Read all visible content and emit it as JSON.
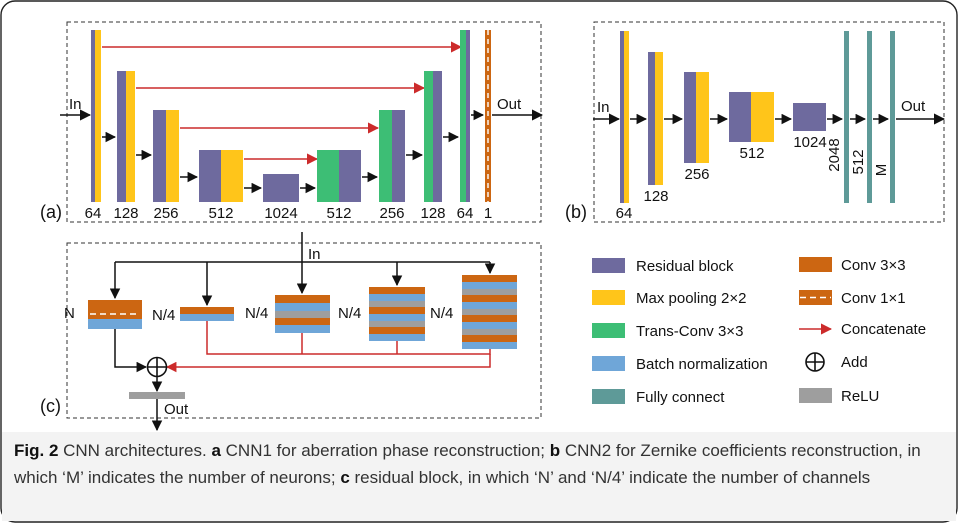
{
  "colors": {
    "residual": "#6E6A9E",
    "maxpool": "#FFC51A",
    "transconv": "#3DBE75",
    "batchnorm": "#6FA6D8",
    "fully": "#5E9A98",
    "conv3": "#CC6612",
    "relu": "#9E9E9E",
    "arrow": "#CC2B2B",
    "caption_bg": "#F3F3F3"
  },
  "panel_a": {
    "label": "(a)",
    "input": "In",
    "output": "Out",
    "numbers": [
      "64",
      "128",
      "256",
      "512",
      "1024",
      "512",
      "256",
      "128",
      "64",
      "1"
    ]
  },
  "panel_b": {
    "label": "(b)",
    "input": "In",
    "output": "Out",
    "numbers": [
      "64",
      "128",
      "256",
      "512",
      "1024",
      "2048",
      "512",
      "M"
    ]
  },
  "panel_c": {
    "label": "(c)",
    "input": "In",
    "output": "Out",
    "labels": [
      "N",
      "N/4",
      "N/4",
      "N/4",
      "N/4"
    ]
  },
  "legend": {
    "items": [
      {
        "key": "residual",
        "label": "Residual block"
      },
      {
        "key": "maxpool",
        "label": "Max pooling 2×2"
      },
      {
        "key": "transconv",
        "label": "Trans-Conv 3×3"
      },
      {
        "key": "batchnorm",
        "label": "Batch normalization"
      },
      {
        "key": "fully",
        "label": "Fully connect"
      },
      {
        "key": "conv3",
        "label": "Conv 3×3"
      },
      {
        "key": "conv1",
        "label": "Conv 1×1"
      },
      {
        "key": "concat",
        "label": "Concatenate"
      },
      {
        "key": "add",
        "label": "Add"
      },
      {
        "key": "relu",
        "label": "ReLU"
      }
    ]
  },
  "caption": {
    "fig": "Fig. 2",
    "title": " CNN architectures. ",
    "a": "a",
    "a_text": " CNN1 for aberration phase reconstruction; ",
    "b": "b",
    "b_text": " CNN2 for Zernike coefficients reconstruction, in which ‘M’ indicates the number of neurons; ",
    "c": "c",
    "c_text": " residual block, in which ‘N’ and ‘N/4’ indicate the number of channels"
  }
}
